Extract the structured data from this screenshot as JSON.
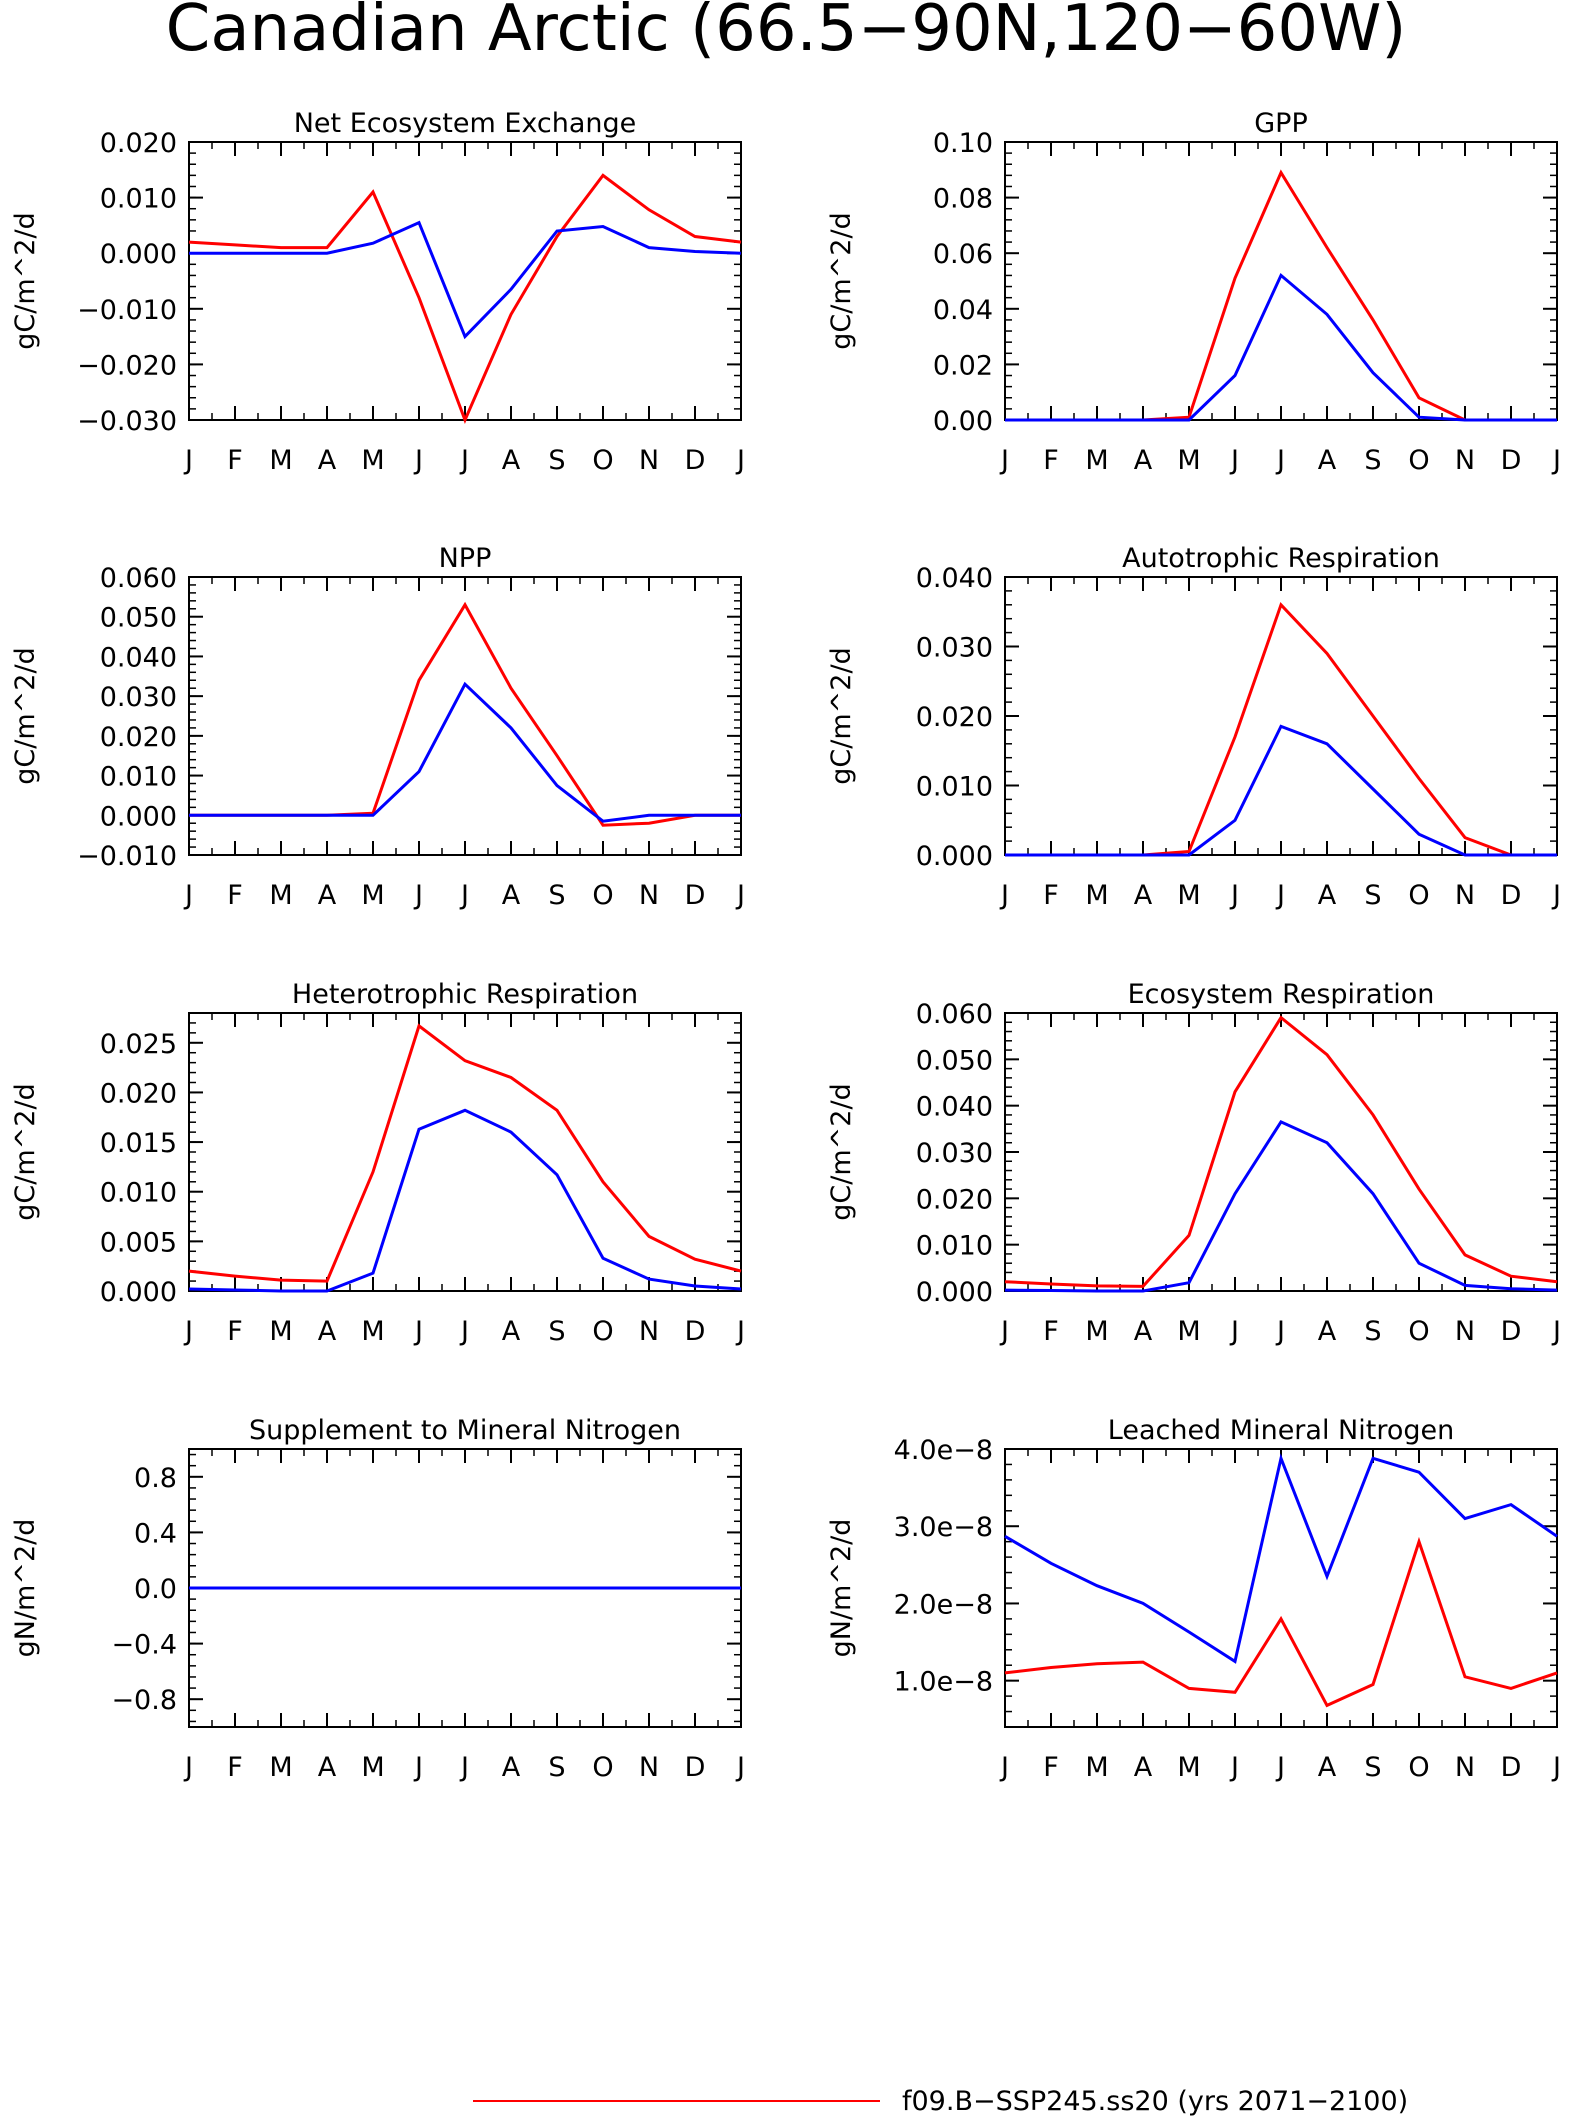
{
  "figure": {
    "title": "Canadian Arctic (66.5−90N,120−60W)",
    "months": [
      "J",
      "F",
      "M",
      "A",
      "M",
      "J",
      "J",
      "A",
      "S",
      "O",
      "N",
      "D",
      "J"
    ],
    "legend": [
      {
        "label": "f09.B−SSP245.ss20 (yrs 2071−2100)",
        "color": "#ff0000"
      }
    ]
  },
  "colors": {
    "series_red": "#ff0000",
    "series_blue": "#0000ff",
    "axis": "#000000"
  },
  "chart_data": [
    {
      "type": "line",
      "title": "Net Ecosystem Exchange",
      "ylabel": "gC/m^2/d",
      "ylim": [
        -0.03,
        0.02
      ],
      "yticks": [
        {
          "v": 0.02,
          "t": "0.020"
        },
        {
          "v": 0.01,
          "t": "0.010"
        },
        {
          "v": 0.0,
          "t": "0.000"
        },
        {
          "v": -0.01,
          "t": "−0.010"
        },
        {
          "v": -0.02,
          "t": "−0.020"
        },
        {
          "v": -0.03,
          "t": "−0.030"
        }
      ],
      "series": [
        {
          "color": "red",
          "values": [
            0.002,
            0.0015,
            0.001,
            0.001,
            0.011,
            -0.008,
            -0.03,
            -0.011,
            0.003,
            0.014,
            0.0078,
            0.003,
            0.002
          ]
        },
        {
          "color": "blue",
          "values": [
            0.0,
            0.0,
            0.0,
            0.0,
            0.0018,
            0.0055,
            -0.015,
            -0.0065,
            0.004,
            0.0048,
            0.001,
            0.0003,
            0.0
          ]
        }
      ]
    },
    {
      "type": "line",
      "title": "GPP",
      "ylabel": "gC/m^2/d",
      "ylim": [
        0,
        0.1
      ],
      "yticks": [
        {
          "v": 0.1,
          "t": "0.10"
        },
        {
          "v": 0.08,
          "t": "0.08"
        },
        {
          "v": 0.06,
          "t": "0.06"
        },
        {
          "v": 0.04,
          "t": "0.04"
        },
        {
          "v": 0.02,
          "t": "0.02"
        },
        {
          "v": 0.0,
          "t": "0.00"
        }
      ],
      "series": [
        {
          "color": "red",
          "values": [
            0,
            0,
            0,
            0,
            0.001,
            0.051,
            0.089,
            0.062,
            0.036,
            0.008,
            0,
            0,
            0
          ]
        },
        {
          "color": "blue",
          "values": [
            0,
            0,
            0,
            0,
            0.0,
            0.016,
            0.052,
            0.038,
            0.017,
            0.001,
            0,
            0,
            0
          ]
        }
      ]
    },
    {
      "type": "line",
      "title": "NPP",
      "ylabel": "gC/m^2/d",
      "ylim": [
        -0.01,
        0.06
      ],
      "yticks": [
        {
          "v": 0.06,
          "t": "0.060"
        },
        {
          "v": 0.05,
          "t": "0.050"
        },
        {
          "v": 0.04,
          "t": "0.040"
        },
        {
          "v": 0.03,
          "t": "0.030"
        },
        {
          "v": 0.02,
          "t": "0.020"
        },
        {
          "v": 0.01,
          "t": "0.010"
        },
        {
          "v": 0.0,
          "t": "0.000"
        },
        {
          "v": -0.01,
          "t": "−0.010"
        }
      ],
      "series": [
        {
          "color": "red",
          "values": [
            0,
            0,
            0,
            0,
            0.0005,
            0.034,
            0.053,
            0.032,
            0.015,
            -0.0025,
            -0.002,
            0,
            0
          ]
        },
        {
          "color": "blue",
          "values": [
            0,
            0,
            0,
            0,
            0.0,
            0.011,
            0.033,
            0.022,
            0.0075,
            -0.0015,
            0,
            0,
            0
          ]
        }
      ]
    },
    {
      "type": "line",
      "title": "Autotrophic Respiration",
      "ylabel": "gC/m^2/d",
      "ylim": [
        0,
        0.04
      ],
      "yticks": [
        {
          "v": 0.04,
          "t": "0.040"
        },
        {
          "v": 0.03,
          "t": "0.030"
        },
        {
          "v": 0.02,
          "t": "0.020"
        },
        {
          "v": 0.01,
          "t": "0.010"
        },
        {
          "v": 0.0,
          "t": "0.000"
        }
      ],
      "series": [
        {
          "color": "red",
          "values": [
            0,
            0,
            0,
            0,
            0.0005,
            0.017,
            0.036,
            0.029,
            0.02,
            0.011,
            0.0025,
            0,
            0
          ]
        },
        {
          "color": "blue",
          "values": [
            0,
            0,
            0,
            0,
            0.0,
            0.005,
            0.0185,
            0.016,
            0.0095,
            0.003,
            0,
            0,
            0
          ]
        }
      ]
    },
    {
      "type": "line",
      "title": "Heterotrophic Respiration",
      "ylabel": "gC/m^2/d",
      "ylim": [
        0,
        0.028
      ],
      "yticks": [
        {
          "v": 0.025,
          "t": "0.025"
        },
        {
          "v": 0.02,
          "t": "0.020"
        },
        {
          "v": 0.015,
          "t": "0.015"
        },
        {
          "v": 0.01,
          "t": "0.010"
        },
        {
          "v": 0.005,
          "t": "0.005"
        },
        {
          "v": 0.0,
          "t": "0.000"
        }
      ],
      "series": [
        {
          "color": "red",
          "values": [
            0.002,
            0.0015,
            0.0011,
            0.001,
            0.012,
            0.0267,
            0.0232,
            0.0215,
            0.0182,
            0.011,
            0.0055,
            0.0032,
            0.002
          ]
        },
        {
          "color": "blue",
          "values": [
            0.0002,
            0.0001,
            0.0,
            0.0,
            0.0018,
            0.0163,
            0.0182,
            0.016,
            0.0117,
            0.0033,
            0.0012,
            0.0005,
            0.0002
          ]
        }
      ]
    },
    {
      "type": "line",
      "title": "Ecosystem Respiration",
      "ylabel": "gC/m^2/d",
      "ylim": [
        0,
        0.06
      ],
      "yticks": [
        {
          "v": 0.06,
          "t": "0.060"
        },
        {
          "v": 0.05,
          "t": "0.050"
        },
        {
          "v": 0.04,
          "t": "0.040"
        },
        {
          "v": 0.03,
          "t": "0.030"
        },
        {
          "v": 0.02,
          "t": "0.020"
        },
        {
          "v": 0.01,
          "t": "0.010"
        },
        {
          "v": 0.0,
          "t": "0.000"
        }
      ],
      "series": [
        {
          "color": "red",
          "values": [
            0.002,
            0.0015,
            0.0011,
            0.001,
            0.012,
            0.043,
            0.059,
            0.051,
            0.038,
            0.022,
            0.0078,
            0.0032,
            0.002
          ]
        },
        {
          "color": "blue",
          "values": [
            0.0002,
            0.0001,
            0.0,
            0.0,
            0.0018,
            0.021,
            0.0365,
            0.032,
            0.021,
            0.006,
            0.0012,
            0.0005,
            0.0002
          ]
        }
      ]
    },
    {
      "type": "line",
      "title": "Supplement to Mineral Nitrogen",
      "ylabel": "gN/m^2/d",
      "ylim": [
        -1,
        1
      ],
      "yticks": [
        {
          "v": 0.8,
          "t": "0.8"
        },
        {
          "v": 0.4,
          "t": "0.4"
        },
        {
          "v": 0.0,
          "t": "0.0"
        },
        {
          "v": -0.4,
          "t": "−0.4"
        },
        {
          "v": -0.8,
          "t": "−0.8"
        }
      ],
      "series": [
        {
          "color": "red",
          "values": [
            0,
            0,
            0,
            0,
            0,
            0,
            0,
            0,
            0,
            0,
            0,
            0,
            0
          ]
        },
        {
          "color": "blue",
          "values": [
            0,
            0,
            0,
            0,
            0,
            0,
            0,
            0,
            0,
            0,
            0,
            0,
            0
          ]
        }
      ]
    },
    {
      "type": "line",
      "title": "Leached Mineral Nitrogen",
      "ylabel": "gN/m^2/d",
      "ylim": [
        4e-09,
        4e-08
      ],
      "yticks": [
        {
          "v": 4e-08,
          "t": "4.0e−8"
        },
        {
          "v": 3e-08,
          "t": "3.0e−8"
        },
        {
          "v": 2e-08,
          "t": "2.0e−8"
        },
        {
          "v": 1e-08,
          "t": "1.0e−8"
        }
      ],
      "series": [
        {
          "color": "red",
          "values": [
            1.1e-08,
            1.17e-08,
            1.22e-08,
            1.24e-08,
            9e-09,
            8.5e-09,
            1.8e-08,
            6.8e-09,
            9.5e-09,
            2.8e-08,
            1.05e-08,
            9e-09,
            1.1e-08
          ]
        },
        {
          "color": "blue",
          "values": [
            2.87e-08,
            2.52e-08,
            2.23e-08,
            2e-08,
            1.63e-08,
            1.25e-08,
            3.88e-08,
            2.35e-08,
            3.88e-08,
            3.7e-08,
            3.1e-08,
            3.28e-08,
            2.87e-08
          ]
        }
      ]
    }
  ]
}
